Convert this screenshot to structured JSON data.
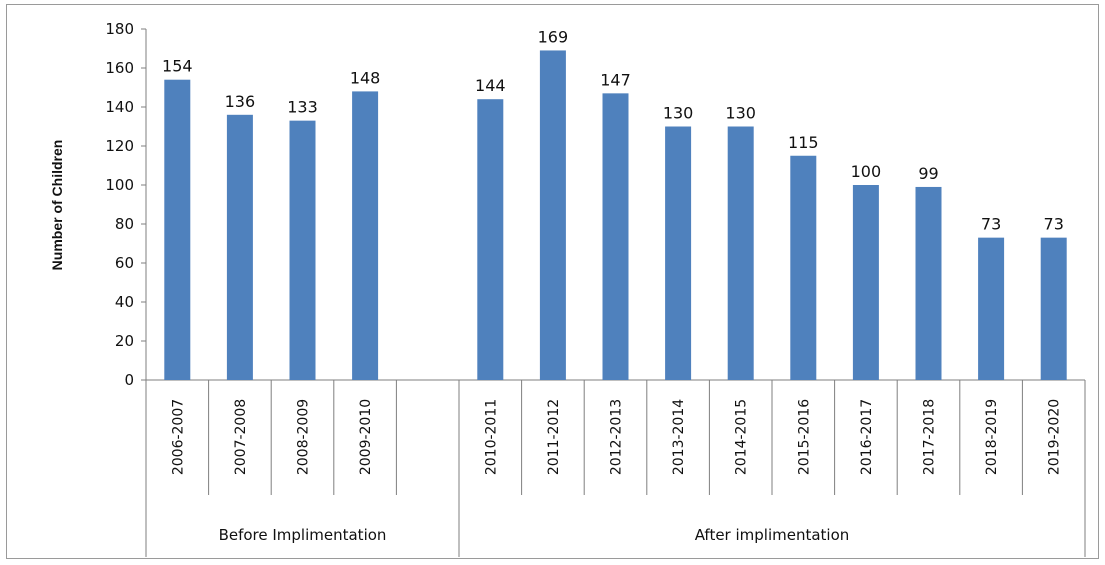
{
  "chart_data": {
    "type": "bar",
    "ylabel": "Number of Children",
    "ylim": [
      0,
      180
    ],
    "yticks": [
      0,
      20,
      40,
      60,
      80,
      100,
      120,
      140,
      160,
      180
    ],
    "grid": false,
    "legend": "none",
    "bar_color": "#4f81bd",
    "categories": [
      "2006-2007",
      "2007-2008",
      "2008-2009",
      "2009-2010",
      "",
      "2010-2011",
      "2011-2012",
      "2012-2013",
      "2013-2014",
      "2014-2015",
      "2015-2016",
      "2016-2017",
      "2017-2018",
      "2018-2019",
      "2019-2020"
    ],
    "values": [
      154,
      136,
      133,
      148,
      null,
      144,
      169,
      147,
      130,
      130,
      115,
      100,
      99,
      73,
      73
    ],
    "groups": [
      {
        "label": "Before Implimentation",
        "categories": [
          "2006-2007",
          "2007-2008",
          "2008-2009",
          "2009-2010",
          ""
        ]
      },
      {
        "label": "After implimentation",
        "categories": [
          "2010-2011",
          "2011-2012",
          "2012-2013",
          "2013-2014",
          "2014-2015",
          "2015-2016",
          "2016-2017",
          "2017-2018",
          "2018-2019",
          "2019-2020"
        ]
      }
    ]
  }
}
